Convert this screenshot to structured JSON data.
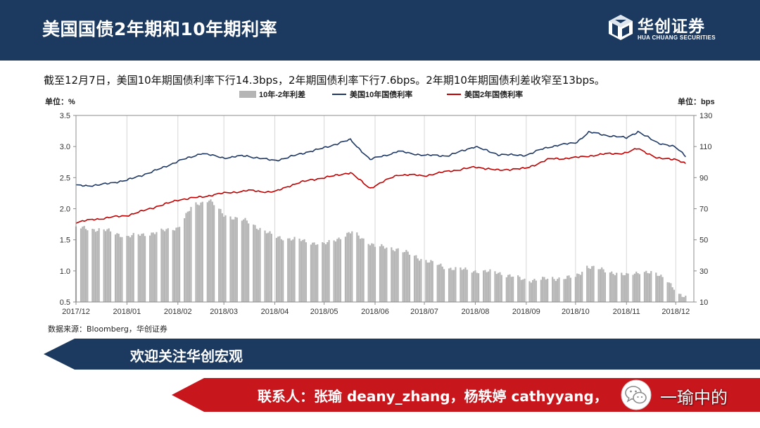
{
  "header": {
    "title": "美国国债2年期和10年期利率"
  },
  "logo": {
    "name_cn": "华创证券",
    "name_en": "HUA CHUANG SECURITIES"
  },
  "note": "截至12月7日，美国10年期国债利率下行14.3bps，2年期国债利率下行7.6bps。2年期10年期国债利差收窄至13bps。",
  "source": "数据来源：Bloomberg，华创证券",
  "banner1": {
    "text": "欢迎关注华创宏观"
  },
  "banner2": {
    "text": "联系人：张瑜 deany_zhang，杨轶婷 cathyyang，"
  },
  "wechat": {
    "icon": "wechat-icon",
    "label": "一瑜中的"
  },
  "colors": {
    "navy": "#1c3a60",
    "red": "#c8161d",
    "bar": "#b5b5b5",
    "line10y": "#1f3864",
    "line2y": "#c00000"
  },
  "chart_data": {
    "type": "bar+line",
    "left_unit": "单位：%",
    "right_unit": "单位：bps",
    "left_ylim": [
      0.5,
      3.5
    ],
    "left_ticks": [
      "0.5",
      "1.0",
      "1.5",
      "2.0",
      "2.5",
      "3.0",
      "3.5"
    ],
    "right_ylim": [
      10,
      130
    ],
    "right_ticks": [
      "10",
      "30",
      "50",
      "70",
      "90",
      "110",
      "130"
    ],
    "x_tick_labels": [
      "2017/12",
      "2018/01",
      "2018/02",
      "2018/03",
      "2018/04",
      "2018/05",
      "2018/06",
      "2018/07",
      "2018/08",
      "2018/09",
      "2018/10",
      "2018/11",
      "2018/12"
    ],
    "grid": "vertical",
    "legend_position": "top",
    "series": [
      {
        "name": "10年-2年利差",
        "type": "bar",
        "axis": "right",
        "keypoints": [
          [
            "2017-12-01",
            58
          ],
          [
            "2017-12-20",
            56
          ],
          [
            "2018-01-01",
            52
          ],
          [
            "2018-01-20",
            55
          ],
          [
            "2018-02-01",
            58
          ],
          [
            "2018-02-10",
            72
          ],
          [
            "2018-02-20",
            76
          ],
          [
            "2018-03-01",
            66
          ],
          [
            "2018-03-15",
            62
          ],
          [
            "2018-04-01",
            52
          ],
          [
            "2018-04-15",
            50
          ],
          [
            "2018-05-01",
            47
          ],
          [
            "2018-05-18",
            55
          ],
          [
            "2018-06-01",
            46
          ],
          [
            "2018-06-15",
            44
          ],
          [
            "2018-07-01",
            37
          ],
          [
            "2018-07-15",
            32
          ],
          [
            "2018-08-01",
            30
          ],
          [
            "2018-08-15",
            29
          ],
          [
            "2018-09-01",
            24
          ],
          [
            "2018-09-15",
            25
          ],
          [
            "2018-10-01",
            26
          ],
          [
            "2018-10-08",
            33
          ],
          [
            "2018-10-20",
            30
          ],
          [
            "2018-11-01",
            27
          ],
          [
            "2018-11-10",
            30
          ],
          [
            "2018-11-25",
            26
          ],
          [
            "2018-12-03",
            14
          ],
          [
            "2018-12-07",
            13
          ]
        ]
      },
      {
        "name": "美国10年国债利率",
        "type": "line",
        "axis": "left",
        "keypoints": [
          [
            "2017-12-01",
            2.37
          ],
          [
            "2017-12-15",
            2.38
          ],
          [
            "2018-01-01",
            2.46
          ],
          [
            "2018-01-15",
            2.58
          ],
          [
            "2018-02-01",
            2.76
          ],
          [
            "2018-02-15",
            2.89
          ],
          [
            "2018-03-01",
            2.82
          ],
          [
            "2018-03-15",
            2.85
          ],
          [
            "2018-04-01",
            2.77
          ],
          [
            "2018-04-15",
            2.87
          ],
          [
            "2018-05-01",
            2.98
          ],
          [
            "2018-05-17",
            3.11
          ],
          [
            "2018-05-29",
            2.79
          ],
          [
            "2018-06-15",
            2.92
          ],
          [
            "2018-07-01",
            2.86
          ],
          [
            "2018-07-15",
            2.85
          ],
          [
            "2018-08-01",
            3.0
          ],
          [
            "2018-08-15",
            2.87
          ],
          [
            "2018-09-01",
            2.86
          ],
          [
            "2018-09-15",
            3.0
          ],
          [
            "2018-10-01",
            3.06
          ],
          [
            "2018-10-09",
            3.23
          ],
          [
            "2018-10-20",
            3.18
          ],
          [
            "2018-11-01",
            3.14
          ],
          [
            "2018-11-08",
            3.24
          ],
          [
            "2018-11-20",
            3.06
          ],
          [
            "2018-12-01",
            2.99
          ],
          [
            "2018-12-07",
            2.85
          ]
        ]
      },
      {
        "name": "美国2年国债利率",
        "type": "line",
        "axis": "left",
        "keypoints": [
          [
            "2017-12-01",
            1.78
          ],
          [
            "2017-12-15",
            1.84
          ],
          [
            "2018-01-01",
            1.89
          ],
          [
            "2018-01-15",
            2.0
          ],
          [
            "2018-02-01",
            2.14
          ],
          [
            "2018-02-15",
            2.19
          ],
          [
            "2018-03-01",
            2.25
          ],
          [
            "2018-03-15",
            2.29
          ],
          [
            "2018-04-01",
            2.27
          ],
          [
            "2018-04-15",
            2.42
          ],
          [
            "2018-05-01",
            2.5
          ],
          [
            "2018-05-17",
            2.58
          ],
          [
            "2018-05-29",
            2.33
          ],
          [
            "2018-06-15",
            2.55
          ],
          [
            "2018-07-01",
            2.53
          ],
          [
            "2018-07-15",
            2.6
          ],
          [
            "2018-08-01",
            2.67
          ],
          [
            "2018-08-15",
            2.62
          ],
          [
            "2018-09-01",
            2.65
          ],
          [
            "2018-09-15",
            2.8
          ],
          [
            "2018-10-01",
            2.82
          ],
          [
            "2018-10-15",
            2.87
          ],
          [
            "2018-11-01",
            2.9
          ],
          [
            "2018-11-08",
            2.97
          ],
          [
            "2018-11-20",
            2.81
          ],
          [
            "2018-12-01",
            2.8
          ],
          [
            "2018-12-07",
            2.72
          ]
        ]
      }
    ]
  }
}
